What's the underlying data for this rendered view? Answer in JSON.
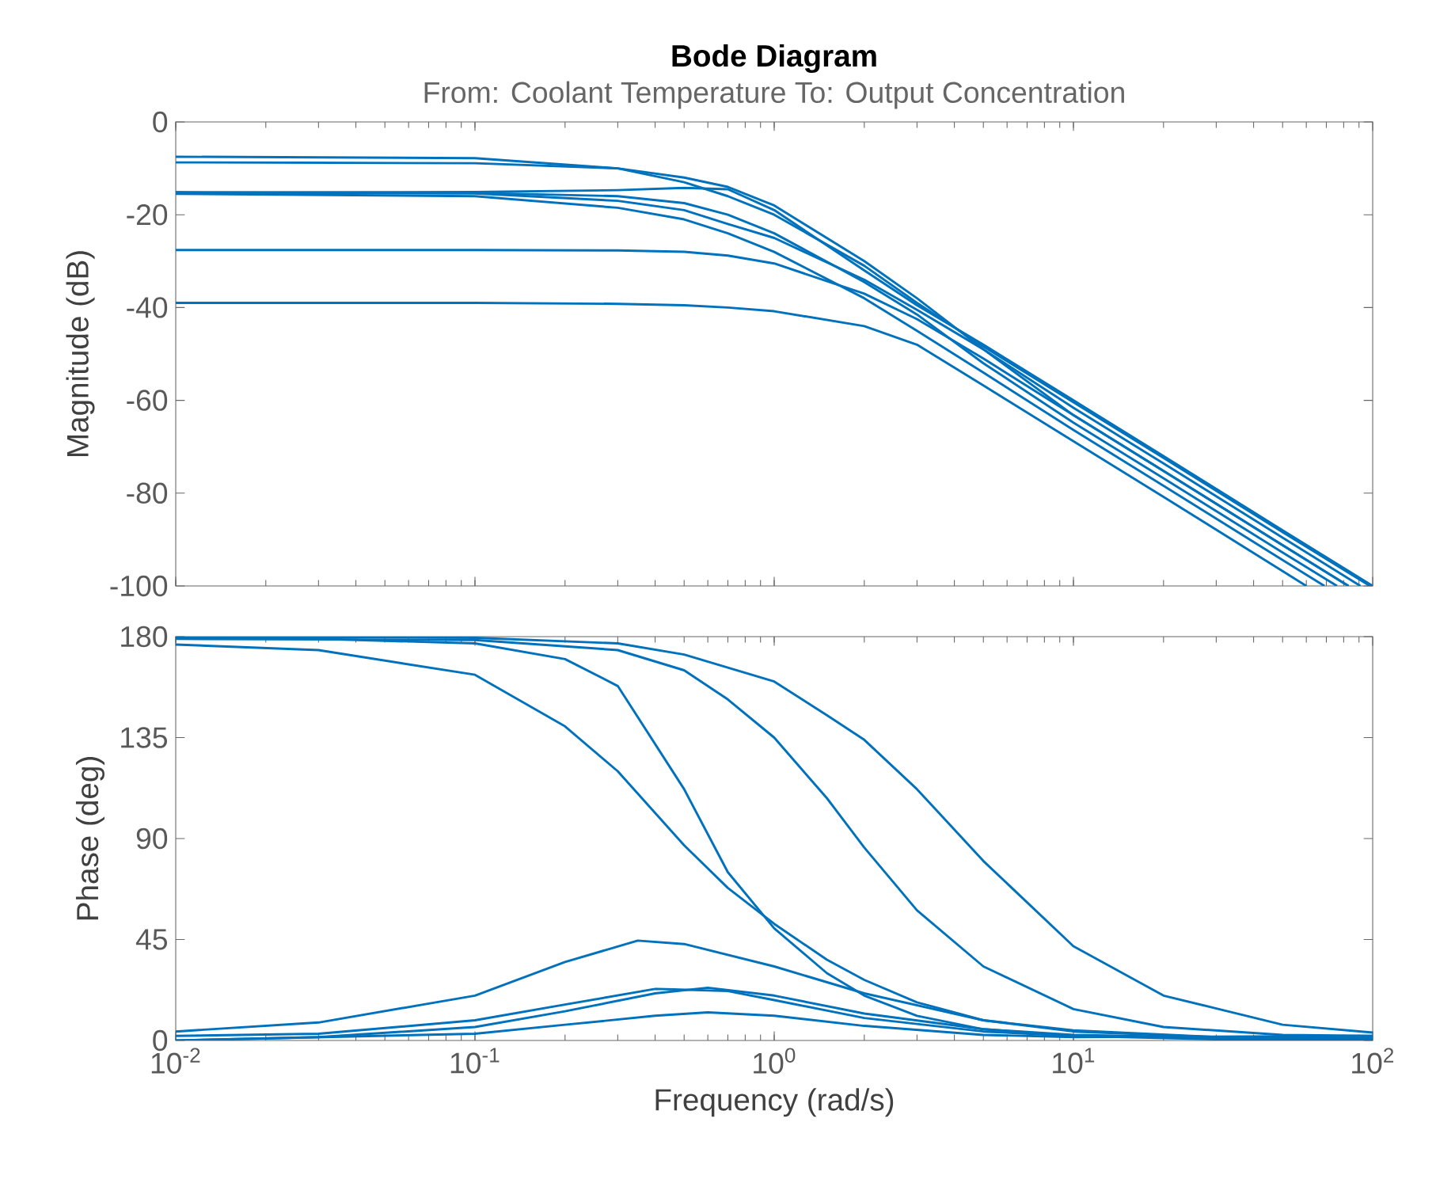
{
  "chart_data": [
    {
      "type": "line",
      "title": "Bode Diagram",
      "subtitle": "From: Coolant Temperature  To: Output Concentration",
      "ylabel": "Magnitude (dB)",
      "log": "x",
      "tick_labels": "y",
      "xlim": [
        0.01,
        100
      ],
      "ylim": [
        -100,
        0
      ],
      "xticks": [
        {
          "value": 0.01,
          "label": null
        },
        {
          "value": 0.1,
          "label": null
        },
        {
          "value": 1,
          "label": null
        },
        {
          "value": 10,
          "label": null
        },
        {
          "value": 100,
          "label": null
        }
      ],
      "yticks": [
        -100,
        -80,
        -60,
        -40,
        -20,
        0
      ],
      "series": [
        {
          "color": "#0072bd",
          "x": [
            0.01,
            0.1,
            0.3,
            0.5,
            0.7,
            1,
            2,
            3,
            5,
            10,
            20,
            50,
            98
          ],
          "values": [
            -7.5,
            -7.8,
            -10,
            -13,
            -16,
            -20,
            -31,
            -39,
            -48.4,
            -60.4,
            -72.4,
            -88.4,
            -100
          ]
        },
        {
          "color": "#0072bd",
          "x": [
            0.01,
            0.1,
            0.3,
            0.5,
            0.7,
            1,
            2,
            3,
            5,
            10,
            20,
            50,
            91
          ],
          "values": [
            -8.7,
            -8.9,
            -10,
            -12,
            -14,
            -18,
            -30,
            -38,
            -49,
            -61.6,
            -73.6,
            -89.6,
            -100
          ]
        },
        {
          "color": "#0072bd",
          "x": [
            0.01,
            0.1,
            0.3,
            0.5,
            0.7,
            1,
            2,
            3,
            5,
            10,
            20,
            50,
            100
          ],
          "values": [
            -15.2,
            -15.1,
            -14.7,
            -14.2,
            -14.5,
            -19,
            -32,
            -39.5,
            -48,
            -60,
            -72,
            -88,
            -100
          ]
        },
        {
          "color": "#0072bd",
          "x": [
            0.01,
            0.1,
            0.3,
            0.5,
            0.7,
            1,
            2,
            3,
            5,
            10,
            20,
            50,
            83
          ],
          "values": [
            -15.2,
            -15.4,
            -17,
            -19,
            -22,
            -25,
            -34,
            -40.5,
            -49,
            -63.2,
            -75.2,
            -91.2,
            -100
          ]
        },
        {
          "color": "#0072bd",
          "x": [
            0.01,
            0.1,
            0.3,
            0.5,
            0.7,
            1,
            2,
            3,
            5,
            10,
            20,
            50,
            76
          ],
          "values": [
            -15.2,
            -15.3,
            -16,
            -17.5,
            -20,
            -24,
            -34.5,
            -41.5,
            -52,
            -64.8,
            -76.8,
            -92.8,
            -100
          ]
        },
        {
          "color": "#0072bd",
          "x": [
            0.01,
            0.1,
            0.3,
            0.5,
            0.7,
            1,
            2,
            3,
            5,
            10,
            20,
            50,
            69
          ],
          "values": [
            -15.5,
            -16,
            -18.5,
            -21,
            -24,
            -28,
            -38,
            -45,
            -54,
            -66.4,
            -78.4,
            -94.4,
            -100
          ]
        },
        {
          "color": "#0072bd",
          "x": [
            0.01,
            0.1,
            0.3,
            0.5,
            0.7,
            1,
            2,
            3,
            5,
            10,
            20,
            50,
            83
          ],
          "values": [
            -27.6,
            -27.6,
            -27.7,
            -28,
            -28.8,
            -30.5,
            -37,
            -42.5,
            -51,
            -63.2,
            -75.2,
            -91.2,
            -100
          ]
        },
        {
          "color": "#0072bd",
          "x": [
            0.01,
            0.1,
            0.3,
            0.5,
            0.7,
            1,
            2,
            3,
            5,
            10,
            20,
            50,
            60
          ],
          "values": [
            -39,
            -39,
            -39.2,
            -39.5,
            -40,
            -40.8,
            -44,
            -48,
            -56.8,
            -68.8,
            -80.8,
            -96.8,
            -100
          ]
        }
      ]
    },
    {
      "type": "line",
      "xlabel": "Frequency  (rad/s)",
      "ylabel": "Phase (deg)",
      "log": "x",
      "xlim": [
        0.01,
        100
      ],
      "ylim": [
        0,
        180
      ],
      "xticks": [
        {
          "value": 0.01,
          "label": "10$^{-2}$"
        },
        {
          "value": 0.1,
          "label": "10$^{-1}$"
        },
        {
          "value": 1,
          "label": "10$^{0}$"
        },
        {
          "value": 10,
          "label": "10$^{1}$"
        },
        {
          "value": 100,
          "label": "10$^{2}$"
        }
      ],
      "yticks": [
        0,
        45,
        90,
        135,
        180
      ],
      "series": [
        {
          "color": "#0072bd",
          "x": [
            0.01,
            0.03,
            0.1,
            0.2,
            0.3,
            0.5,
            0.7,
            1,
            1.5,
            2,
            3,
            5,
            10,
            30,
            100
          ],
          "values": [
            176.5,
            174,
            163,
            140,
            120,
            87,
            68,
            52,
            36,
            27,
            17,
            9,
            4,
            1.5,
            1.2
          ]
        },
        {
          "color": "#0072bd",
          "x": [
            0.01,
            0.03,
            0.1,
            0.2,
            0.3,
            0.5,
            0.7,
            1,
            1.5,
            2,
            3,
            5,
            10,
            30,
            100
          ],
          "values": [
            179.5,
            179,
            177,
            170,
            158,
            112,
            75,
            50,
            30,
            20,
            11,
            5,
            2,
            0.5,
            0.1
          ]
        },
        {
          "color": "#0072bd",
          "x": [
            0.01,
            0.1,
            0.3,
            0.5,
            0.7,
            1,
            1.5,
            2,
            3,
            5,
            10,
            20,
            50,
            100
          ],
          "values": [
            179,
            178.5,
            174,
            165,
            152,
            135,
            108,
            86,
            58,
            33,
            14,
            6,
            2.5,
            2
          ]
        },
        {
          "color": "#0072bd",
          "x": [
            0.01,
            0.1,
            0.3,
            0.5,
            1,
            1.5,
            2,
            3,
            5,
            10,
            20,
            50,
            100
          ],
          "values": [
            180,
            179.5,
            177,
            172,
            160,
            145,
            134,
            112,
            80,
            42,
            20,
            7,
            3.5
          ]
        },
        {
          "color": "#0072bd",
          "x": [
            0.01,
            0.03,
            0.1,
            0.2,
            0.35,
            0.5,
            1,
            2,
            5,
            10,
            30,
            100
          ],
          "values": [
            4,
            8,
            20,
            35,
            44.5,
            43,
            33,
            21,
            9,
            4.5,
            1.5,
            0.5
          ]
        },
        {
          "color": "#0072bd",
          "x": [
            0.01,
            0.03,
            0.1,
            0.2,
            0.4,
            0.7,
            1,
            2,
            5,
            10,
            100
          ],
          "values": [
            2,
            3,
            9,
            16,
            23,
            22,
            18,
            10,
            4,
            2,
            0.8
          ]
        },
        {
          "color": "#0072bd",
          "x": [
            0.01,
            0.03,
            0.1,
            0.2,
            0.4,
            0.6,
            1,
            2,
            5,
            10,
            100
          ],
          "values": [
            0,
            1.5,
            6,
            13,
            21,
            23.5,
            20,
            12,
            5,
            2.5,
            0
          ]
        },
        {
          "color": "#0072bd",
          "x": [
            0.01,
            0.1,
            0.2,
            0.4,
            0.6,
            1,
            2,
            5,
            10,
            100
          ],
          "values": [
            0,
            3,
            7,
            11,
            12.5,
            11,
            6.5,
            2.5,
            1.5,
            2
          ]
        }
      ]
    }
  ]
}
